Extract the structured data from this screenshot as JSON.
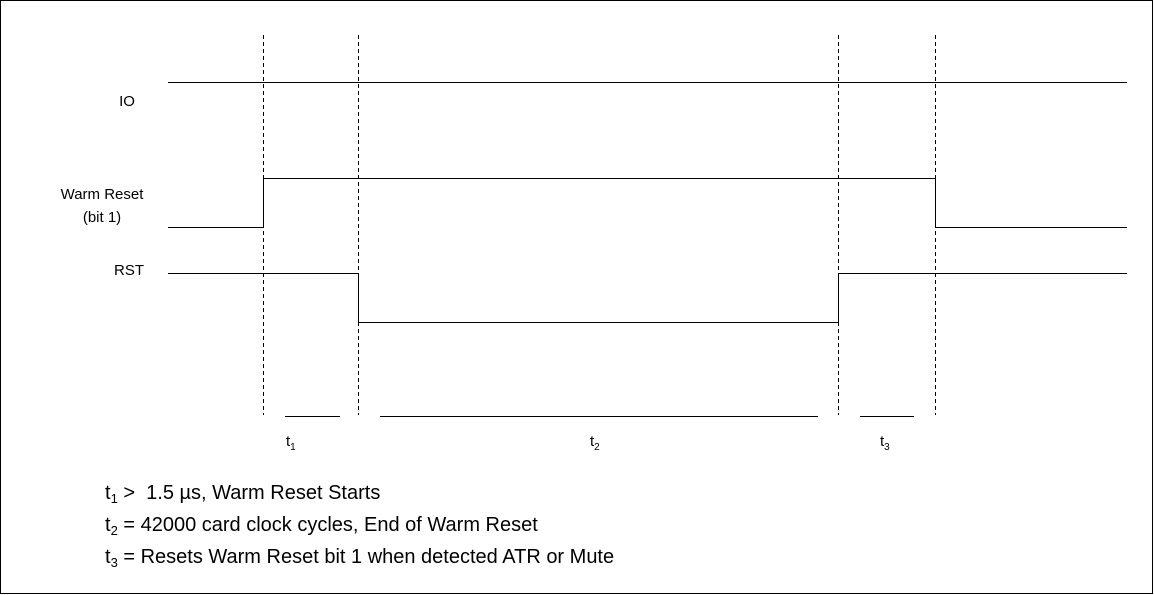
{
  "signals": {
    "io": "IO",
    "warm_reset": "Warm Reset",
    "warm_reset_bit": "(bit 1)",
    "rst": "RST"
  },
  "intervals": [
    {
      "base": "t",
      "sub": "1"
    },
    {
      "base": "t",
      "sub": "2"
    },
    {
      "base": "t",
      "sub": "3"
    }
  ],
  "notes": [
    {
      "base": "t",
      "sub": "1",
      "text": " >  1.5 µs, Warm Reset Starts"
    },
    {
      "base": "t",
      "sub": "2",
      "text": " = 42000 card clock cycles, End of Warm Reset"
    },
    {
      "base": "t",
      "sub": "3",
      "text": " = Resets Warm Reset bit 1 when detected ATR or Mute"
    }
  ]
}
